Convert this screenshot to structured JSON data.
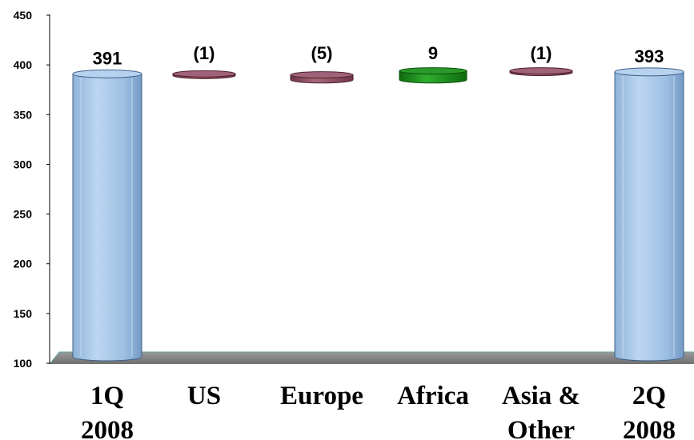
{
  "chart_data": {
    "type": "bar",
    "subtype": "waterfall-cylinder",
    "categories": [
      [
        "1Q",
        "2008"
      ],
      [
        "US"
      ],
      [
        "Europe"
      ],
      [
        "Africa"
      ],
      [
        "Asia &",
        "Other"
      ],
      [
        "2Q",
        "2008"
      ]
    ],
    "values": [
      391,
      -1,
      -5,
      9,
      -1,
      393
    ],
    "data_labels": [
      "391",
      "(1)",
      "(5)",
      "9",
      "(1)",
      "393"
    ],
    "bar_kinds": [
      "total",
      "delta",
      "delta",
      "delta",
      "delta",
      "total"
    ],
    "ylim": [
      100,
      450
    ],
    "yticks": [
      100,
      150,
      200,
      250,
      300,
      350,
      400,
      450
    ],
    "grid": false,
    "legend": "none",
    "colors": {
      "total": "#9dc3e6",
      "decrease": "#8b4a5c",
      "increase": "#1f8a1f",
      "floor": "#7f7f7f"
    }
  }
}
